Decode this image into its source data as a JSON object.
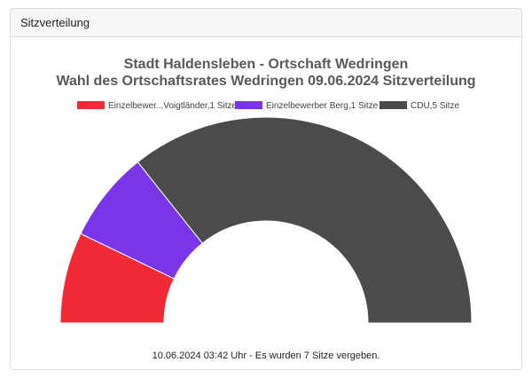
{
  "panel": {
    "title": "Sitzverteilung"
  },
  "chart_data": {
    "type": "half-donut",
    "title": [
      "Stadt Haldensleben - Ortschaft Wedringen",
      "Wahl des Ortschaftsrates Wedringen 09.06.2024 Sitzverteilung"
    ],
    "categories": [
      "Einzelbewer...Voigtländer,1 Sitze",
      "Einzelbewerber Berg,1 Sitze",
      "CDU,5 Sitze"
    ],
    "values": [
      1,
      1,
      5
    ],
    "colors": [
      "#f02a36",
      "#7a35e6",
      "#4b4b4b"
    ],
    "total_seats": 7,
    "legend_position": "top"
  },
  "footer": {
    "text": "10.06.2024 03:42 Uhr - Es wurden 7 Sitze vergeben."
  }
}
